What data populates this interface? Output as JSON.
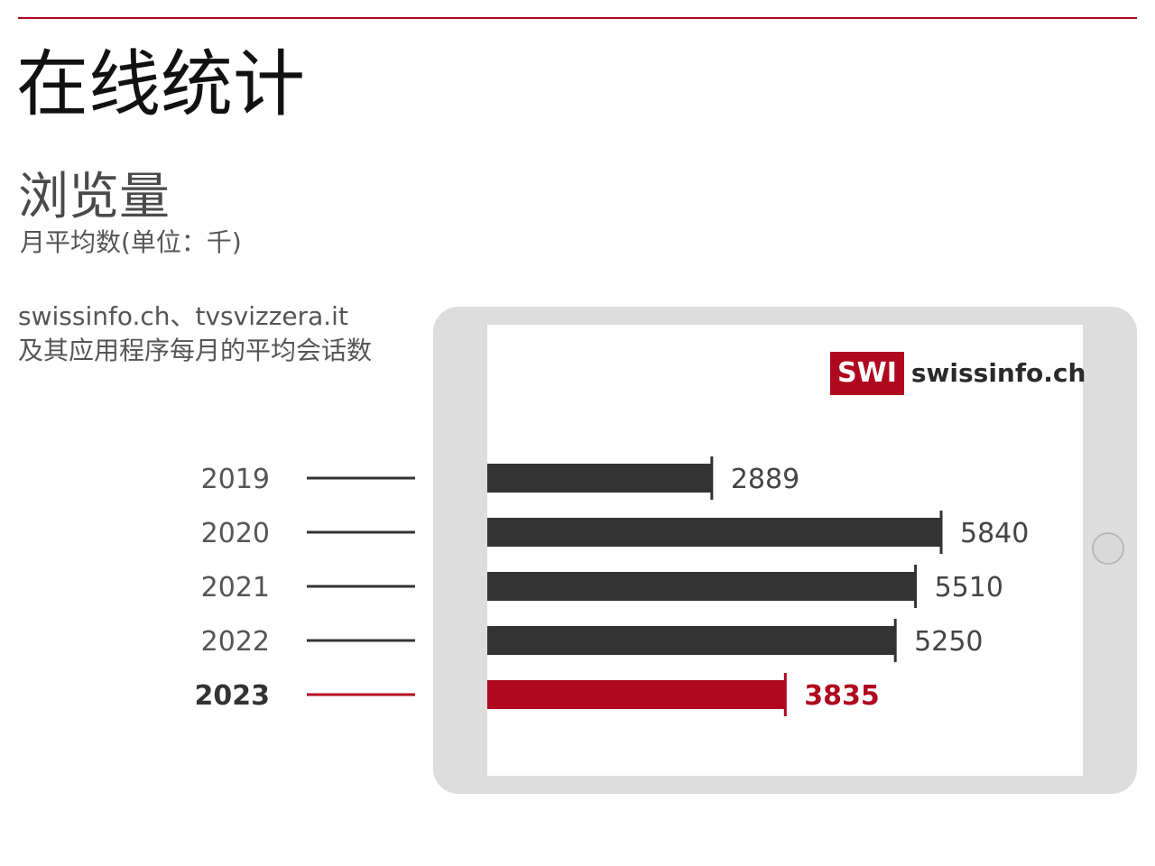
{
  "page": {
    "title": "在线统计",
    "description_line1": "swissinfo.ch、tvsvizzera.it",
    "description_line2": "及其应用程序每月的平均会话数"
  },
  "logo": {
    "badge": "SWI",
    "text": "swissinfo.ch"
  },
  "colors": {
    "accent": "#a50d1f",
    "bar_default": "#333333",
    "bar_highlight": "#b0081f",
    "tablet_frame": "#dcdddc"
  },
  "chart_data": {
    "type": "bar",
    "orientation": "horizontal",
    "title": "浏览量",
    "subtitle": "月平均数(单位：千)",
    "categories": [
      "2019",
      "2020",
      "2021",
      "2022",
      "2023"
    ],
    "values": [
      2889,
      5840,
      5510,
      5250,
      3835
    ],
    "value_labels": [
      "2889",
      "5840",
      "5510",
      "5250",
      "3835"
    ],
    "highlight": "2023",
    "xlim": [
      0,
      5840
    ],
    "grid": false,
    "legend": "none"
  }
}
